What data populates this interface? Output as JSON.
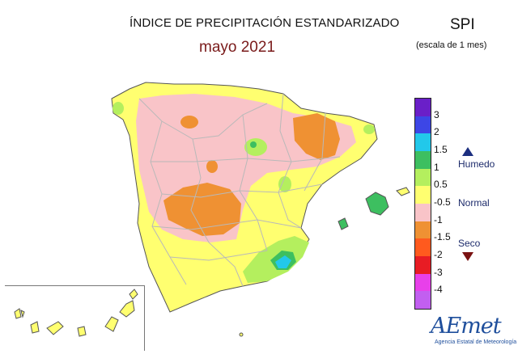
{
  "header": {
    "title": "ÍNDICE DE PRECIPITACIÓN ESTANDARIZADO",
    "subtitle": "mayo 2021",
    "index_abbrev": "SPI",
    "scale_note": "(escala de 1 mes)"
  },
  "legend": {
    "ticks": [
      "3",
      "2",
      "1.5",
      "1",
      "0.5",
      "-0.5",
      "-1",
      "-1.5",
      "-2",
      "-3",
      "-4"
    ],
    "colors": [
      "#6a1fc8",
      "#3d46e6",
      "#22c8ea",
      "#3dbf60",
      "#b4ef5e",
      "#ffff70",
      "#f9c4c8",
      "#ef9133",
      "#ff5a1e",
      "#e81c24",
      "#e840ea",
      "#c25ff0"
    ],
    "categories": {
      "wet": "Humedo",
      "normal": "Normal",
      "dry": "Seco"
    }
  },
  "map_colors": {
    "normal": "#ffff70",
    "slightly_dry": "#f9c4c8",
    "dry": "#ef9133",
    "slightly_wet": "#b4ef5e",
    "wet": "#3dbf60",
    "very_wet": "#22c8ea",
    "border": "#b9b9b9",
    "coast": "#555555"
  },
  "logo": {
    "name": "AEmet",
    "tagline": "Agencia Estatal de Meteorología"
  }
}
